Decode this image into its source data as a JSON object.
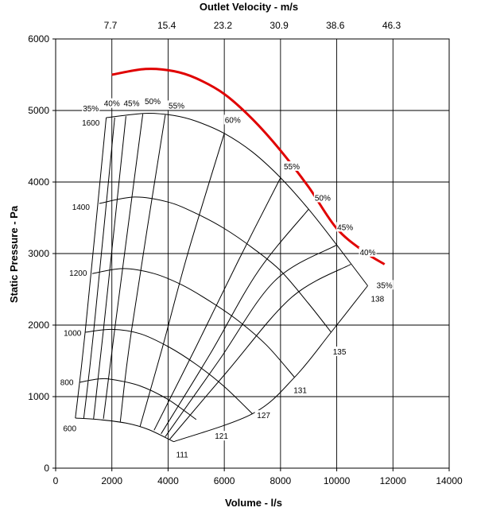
{
  "chart_data": {
    "type": "line",
    "xlabel": "Volume - l/s",
    "ylabel": "Static Pressure - Pa",
    "x2label": "Outlet Velocity - m/s",
    "xlim": [
      0,
      14000
    ],
    "ylim": [
      0,
      6000
    ],
    "xticks": [
      0,
      2000,
      4000,
      6000,
      8000,
      10000,
      12000,
      14000
    ],
    "yticks": [
      0,
      1000,
      2000,
      3000,
      4000,
      5000,
      6000
    ],
    "x2ticks": [
      {
        "value": 1950,
        "label": "7.7"
      },
      {
        "value": 3950,
        "label": "15.4"
      },
      {
        "value": 5950,
        "label": "23.2"
      },
      {
        "value": 7950,
        "label": "30.9"
      },
      {
        "value": 9950,
        "label": "38.6"
      },
      {
        "value": 11950,
        "label": "46.3"
      }
    ],
    "grid": true,
    "speed_curves": [
      {
        "label": "600",
        "points": [
          [
            700,
            700
          ],
          [
            1500,
            680
          ],
          [
            2500,
            630
          ],
          [
            3300,
            540
          ],
          [
            4200,
            370
          ]
        ]
      },
      {
        "label": "800",
        "points": [
          [
            850,
            1200
          ],
          [
            1500,
            1245
          ],
          [
            2000,
            1240
          ],
          [
            3000,
            1150
          ],
          [
            4000,
            960
          ],
          [
            5000,
            680
          ]
        ]
      },
      {
        "label": "1000",
        "points": [
          [
            1050,
            1900
          ],
          [
            2000,
            1940
          ],
          [
            3000,
            1880
          ],
          [
            4000,
            1700
          ],
          [
            5000,
            1450
          ],
          [
            6000,
            1140
          ],
          [
            7000,
            760
          ]
        ]
      },
      {
        "label": "1200",
        "points": [
          [
            1300,
            2720
          ],
          [
            2400,
            2790
          ],
          [
            3500,
            2720
          ],
          [
            4500,
            2560
          ],
          [
            5500,
            2330
          ],
          [
            6500,
            2060
          ],
          [
            7500,
            1720
          ],
          [
            8500,
            1270
          ]
        ]
      },
      {
        "label": "1400",
        "points": [
          [
            1550,
            3700
          ],
          [
            2800,
            3790
          ],
          [
            4000,
            3720
          ],
          [
            5000,
            3560
          ],
          [
            6000,
            3350
          ],
          [
            7000,
            3080
          ],
          [
            8000,
            2760
          ],
          [
            9000,
            2300
          ],
          [
            9800,
            1900
          ]
        ]
      },
      {
        "label": "1600",
        "points": [
          [
            1800,
            4900
          ],
          [
            3200,
            4960
          ],
          [
            4200,
            4930
          ],
          [
            5000,
            4850
          ],
          [
            6000,
            4680
          ],
          [
            7000,
            4420
          ],
          [
            8000,
            4060
          ],
          [
            9000,
            3620
          ],
          [
            10000,
            3120
          ],
          [
            11100,
            2550
          ]
        ]
      }
    ],
    "efficiency_lines": [
      {
        "label": "35%",
        "points": [
          [
            700,
            700
          ],
          [
            1050,
            1900
          ],
          [
            1800,
            4900
          ]
        ]
      },
      {
        "label": "40%",
        "points": [
          [
            1000,
            700
          ],
          [
            1350,
            1900
          ],
          [
            2100,
            4900
          ]
        ]
      },
      {
        "label": "45%",
        "points": [
          [
            1350,
            690
          ],
          [
            1700,
            1930
          ],
          [
            2500,
            4920
          ]
        ]
      },
      {
        "label": "50%",
        "points": [
          [
            1700,
            690
          ],
          [
            2100,
            1940
          ],
          [
            3100,
            4950
          ]
        ]
      },
      {
        "label": "55%",
        "points": [
          [
            2300,
            650
          ],
          [
            2700,
            1930
          ],
          [
            3900,
            4940
          ]
        ]
      },
      {
        "label": "60%",
        "points": [
          [
            3000,
            580
          ],
          [
            3800,
            1690
          ],
          [
            4700,
            3000
          ],
          [
            6000,
            4680
          ]
        ]
      },
      {
        "label": "55%",
        "points": [
          [
            3500,
            530
          ],
          [
            5000,
            1700
          ],
          [
            6500,
            2900
          ],
          [
            8000,
            4060
          ]
        ]
      },
      {
        "label": "50%",
        "points": [
          [
            3750,
            480
          ],
          [
            5500,
            1600
          ],
          [
            7200,
            2750
          ],
          [
            9000,
            3620
          ]
        ]
      },
      {
        "label": "45%",
        "points": [
          [
            3900,
            440
          ],
          [
            5800,
            1500
          ],
          [
            7800,
            2620
          ],
          [
            10000,
            3120
          ]
        ]
      },
      {
        "label": "40%",
        "points": [
          [
            4050,
            400
          ],
          [
            6100,
            1350
          ],
          [
            8400,
            2390
          ],
          [
            10500,
            2850
          ]
        ]
      },
      {
        "label": "35%",
        "points": [
          [
            4200,
            370
          ],
          [
            7000,
            760
          ],
          [
            8500,
            1270
          ],
          [
            9800,
            1900
          ],
          [
            11100,
            2550
          ]
        ]
      }
    ],
    "system_curve": [
      [
        2000,
        5500
      ],
      [
        3200,
        5580
      ],
      [
        4200,
        5550
      ],
      [
        5000,
        5450
      ],
      [
        6000,
        5230
      ],
      [
        7000,
        4880
      ],
      [
        8000,
        4440
      ],
      [
        9000,
        3930
      ],
      [
        10000,
        3350
      ],
      [
        11000,
        3020
      ],
      [
        11700,
        2850
      ]
    ],
    "speed_label_positions": [
      {
        "text": "1600",
        "x": 1250,
        "y": 4800
      },
      {
        "text": "1400",
        "x": 900,
        "y": 3620
      },
      {
        "text": "1200",
        "x": 800,
        "y": 2700
      },
      {
        "text": "1000",
        "x": 600,
        "y": 1860
      },
      {
        "text": "800",
        "x": 400,
        "y": 1170
      },
      {
        "text": "600",
        "x": 500,
        "y": 530
      }
    ],
    "efficiency_label_positions": [
      {
        "text": "35%",
        "x": 1250,
        "y": 5000
      },
      {
        "text": "40%",
        "x": 2000,
        "y": 5070
      },
      {
        "text": "45%",
        "x": 2700,
        "y": 5070
      },
      {
        "text": "50%",
        "x": 3450,
        "y": 5100
      },
      {
        "text": "55%",
        "x": 4300,
        "y": 5040
      },
      {
        "text": "60%",
        "x": 6300,
        "y": 4840
      },
      {
        "text": "55%",
        "x": 8400,
        "y": 4190
      },
      {
        "text": "50%",
        "x": 9500,
        "y": 3750
      },
      {
        "text": "45%",
        "x": 10300,
        "y": 3340
      },
      {
        "text": "40%",
        "x": 11100,
        "y": 2990
      },
      {
        "text": "35%",
        "x": 11700,
        "y": 2530
      }
    ],
    "outlet_area_labels": [
      {
        "text": "111",
        "x": 4500,
        "y": 160
      },
      {
        "text": "121",
        "x": 5900,
        "y": 420
      },
      {
        "text": "127",
        "x": 7400,
        "y": 710
      },
      {
        "text": "131",
        "x": 8700,
        "y": 1060
      },
      {
        "text": "135",
        "x": 10100,
        "y": 1600
      },
      {
        "text": "138",
        "x": 11450,
        "y": 2340
      }
    ]
  }
}
